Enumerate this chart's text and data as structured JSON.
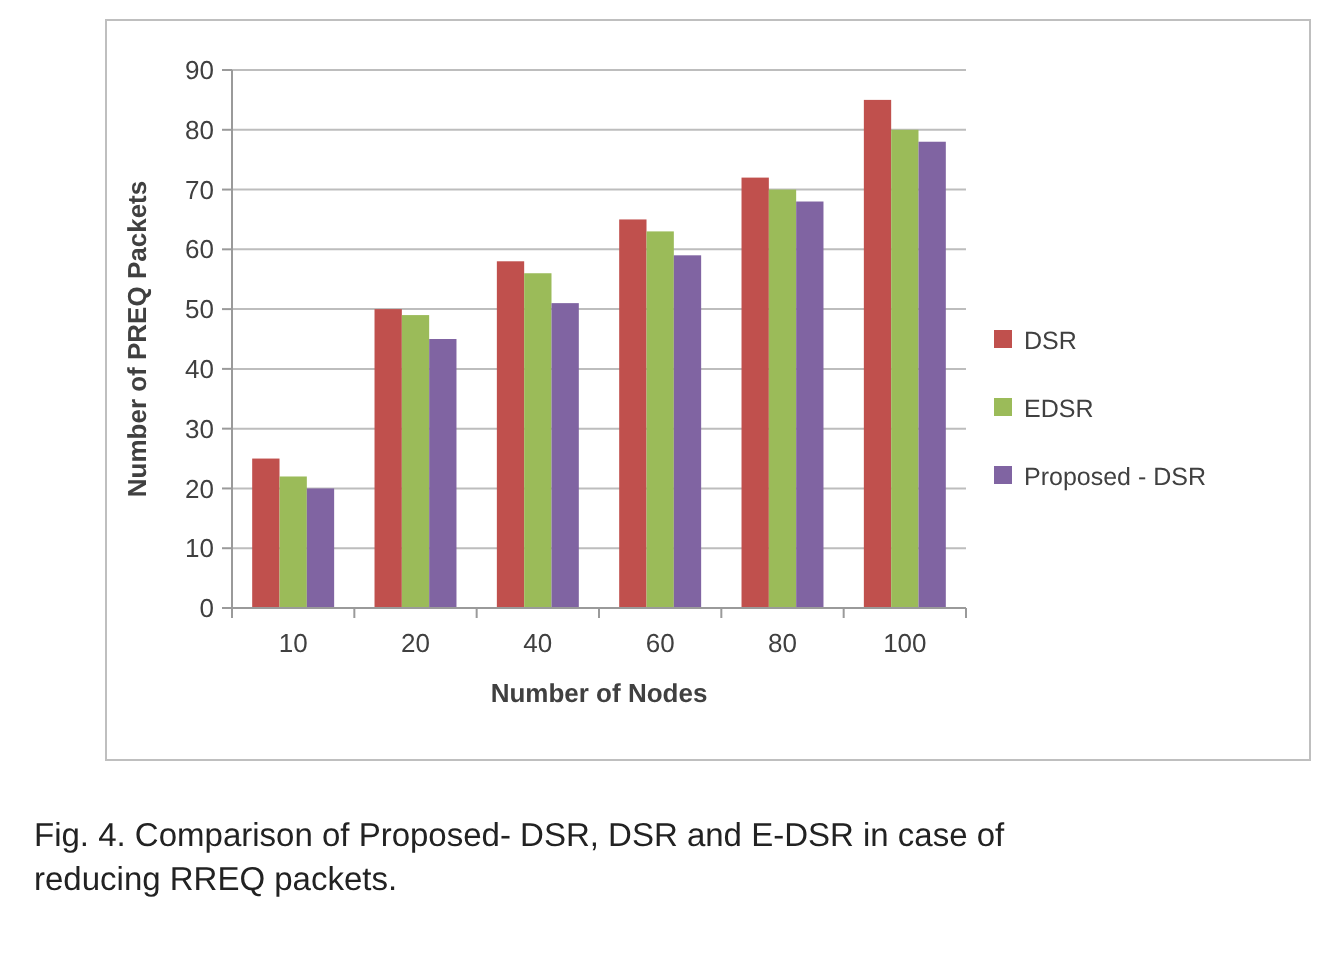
{
  "chart_data": {
    "type": "bar",
    "xlabel": "Number of Nodes",
    "ylabel": "Number of PREQ Packets",
    "categories": [
      "10",
      "20",
      "40",
      "60",
      "80",
      "100"
    ],
    "series": [
      {
        "name": "DSR",
        "color": "#c0504d",
        "values": [
          25,
          50,
          58,
          65,
          72,
          85
        ]
      },
      {
        "name": "EDSR",
        "color": "#9bbb59",
        "values": [
          22,
          49,
          56,
          63,
          70,
          80
        ]
      },
      {
        "name": "Proposed - DSR",
        "color": "#8064a2",
        "values": [
          20,
          45,
          51,
          59,
          68,
          78
        ]
      }
    ],
    "ylim": [
      0,
      90
    ],
    "yticks": [
      0,
      10,
      20,
      30,
      40,
      50,
      60,
      70,
      80,
      90
    ],
    "grid": "y",
    "legend": "right",
    "annotations": [
      "Fig. 4. Comparison of Proposed- DSR, DSR and E-DSR in case of reducing RREQ packets."
    ]
  }
}
